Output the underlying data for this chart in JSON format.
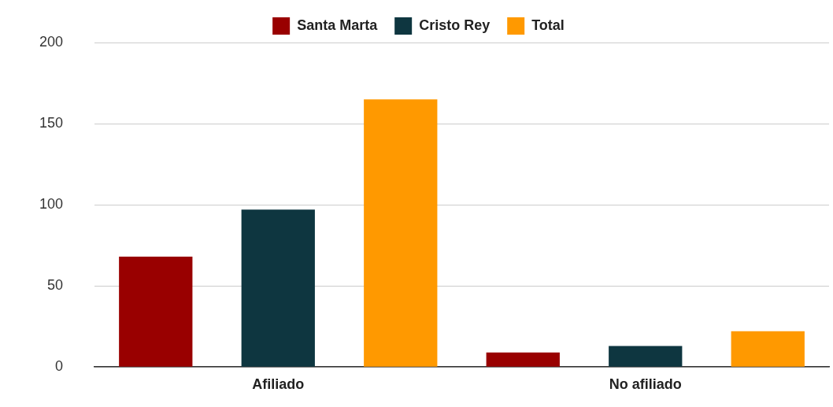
{
  "chart_data": {
    "type": "bar",
    "categories": [
      "Afiliado",
      "No afiliado"
    ],
    "series": [
      {
        "name": "Santa Marta",
        "color": "#990000",
        "values": [
          68,
          9
        ]
      },
      {
        "name": "Cristo Rey",
        "color": "#0e3640",
        "values": [
          97,
          13
        ]
      },
      {
        "name": "Total",
        "color": "#ff9900",
        "values": [
          165,
          22
        ]
      }
    ],
    "ylim": [
      0,
      200
    ],
    "yticks": [
      0,
      50,
      100,
      150,
      200
    ],
    "grid": "y",
    "legend": "top"
  }
}
